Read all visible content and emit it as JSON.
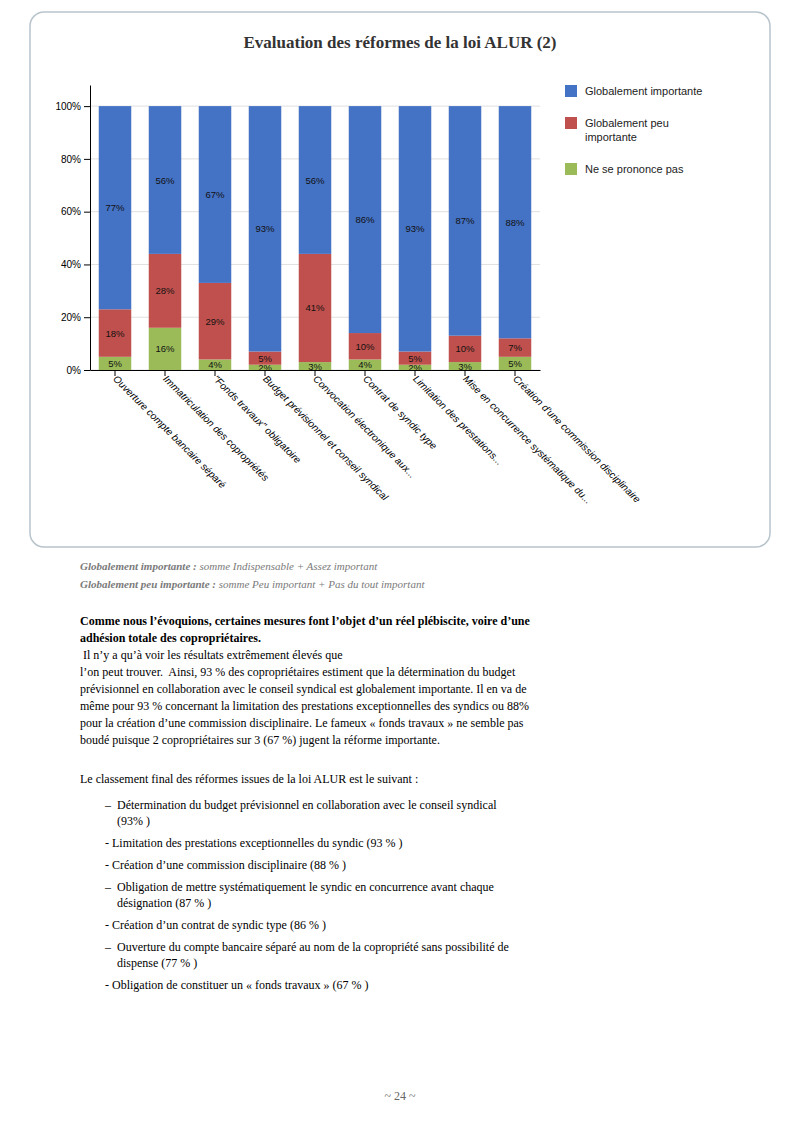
{
  "chart_data": {
    "type": "bar",
    "stacked": true,
    "title": "Evaluation des réformes de la loi ALUR (2)",
    "categories": [
      "Ouverture compte bancaire séparé",
      "Immatriculation des copropriétés",
      "\"Fonds travaux\" obligatoire",
      "Budget prévisionnel et conseil syndical",
      "Convocation électronique aux...",
      "Contrat de syndic type",
      "Limitation des prestations...",
      "Mise en concurrence systématique du...",
      "Création d'une commission disciplinaire"
    ],
    "series": [
      {
        "name": "Ne se prononce pas",
        "color": "#9BBB59",
        "values": [
          5,
          16,
          4,
          2,
          3,
          4,
          2,
          3,
          5
        ],
        "value_labels": [
          "5%",
          "16%",
          "4%",
          "2%",
          "3%",
          "4%",
          "2%",
          "3%",
          "5%"
        ]
      },
      {
        "name": "Globalement peu\nimportante",
        "color": "#C0504D",
        "values": [
          18,
          28,
          29,
          5,
          41,
          10,
          5,
          10,
          7
        ],
        "value_labels": [
          "18%",
          "28%",
          "29%",
          "5%",
          "41%",
          "10%",
          "5%",
          "10%",
          "7%"
        ]
      },
      {
        "name": "Globalement importante",
        "color": "#4472C4",
        "values": [
          77,
          56,
          67,
          93,
          56,
          86,
          93,
          87,
          88
        ],
        "value_labels": [
          "77%",
          "56%",
          "67%",
          "93%",
          "56%",
          "86%",
          "93%",
          "87%",
          "88%"
        ]
      }
    ],
    "ylim": [
      0,
      108
    ],
    "yticks": [
      {
        "value": 0,
        "label": "0%"
      },
      {
        "value": 20,
        "label": "20%"
      },
      {
        "value": 40,
        "label": "40%"
      },
      {
        "value": 60,
        "label": "60%"
      },
      {
        "value": 80,
        "label": "80%"
      },
      {
        "value": 100,
        "label": "100%"
      }
    ],
    "grid": true,
    "legend": "right",
    "data_labels": true
  },
  "footnotes": [
    {
      "bold": "Globalement importante : ",
      "text": "somme Indispensable + Assez important"
    },
    {
      "bold": "Globalement peu importante : ",
      "text": "somme Peu important + Pas du tout important"
    }
  ],
  "paragraph": {
    "bold": "Comme nous l’évoquions, certaines mesures font l’objet d’un réel plébiscite, voire d’une\nadhésion totale des copropriétaires.",
    "text": " Il n’y a qu’à voir les résultats extrêmement élevés que\nl’on peut trouver.  Ainsi, 93 % des copropriétaires estiment que la détermination du budget\nprévisionnel en collaboration avec le conseil syndical est globalement importante. Il en va de\nmême pour 93 % concernant la limitation des prestations exceptionnelles des syndics ou 88%\npour la création d’une commission disciplinaire. Le fameux « fonds travaux » ne semble pas\nboudé puisque 2 copropriétaires sur 3 (67 %) jugent la réforme importante."
  },
  "list_title": "Le classement final des réformes issues de la loi ALUR est le suivant :",
  "list_items": [
    "–  Détermination du budget prévisionnel en collaboration avec le conseil syndical\n    (93% )",
    "- Limitation des prestations exceptionnelles du syndic (93 % )",
    "- Création d’une commission disciplinaire (88 % )",
    "–  Obligation de mettre systématiquement le syndic en concurrence avant chaque\n    désignation (87 % )",
    "- Création d’un contrat de syndic type (86 % )",
    "–  Ouverture du compte bancaire séparé au nom de la copropriété sans possibilité de\n    dispense (77 % )",
    "- Obligation de constituer un « fonds travaux » (67 % )"
  ],
  "page_number": "~ 24 ~"
}
